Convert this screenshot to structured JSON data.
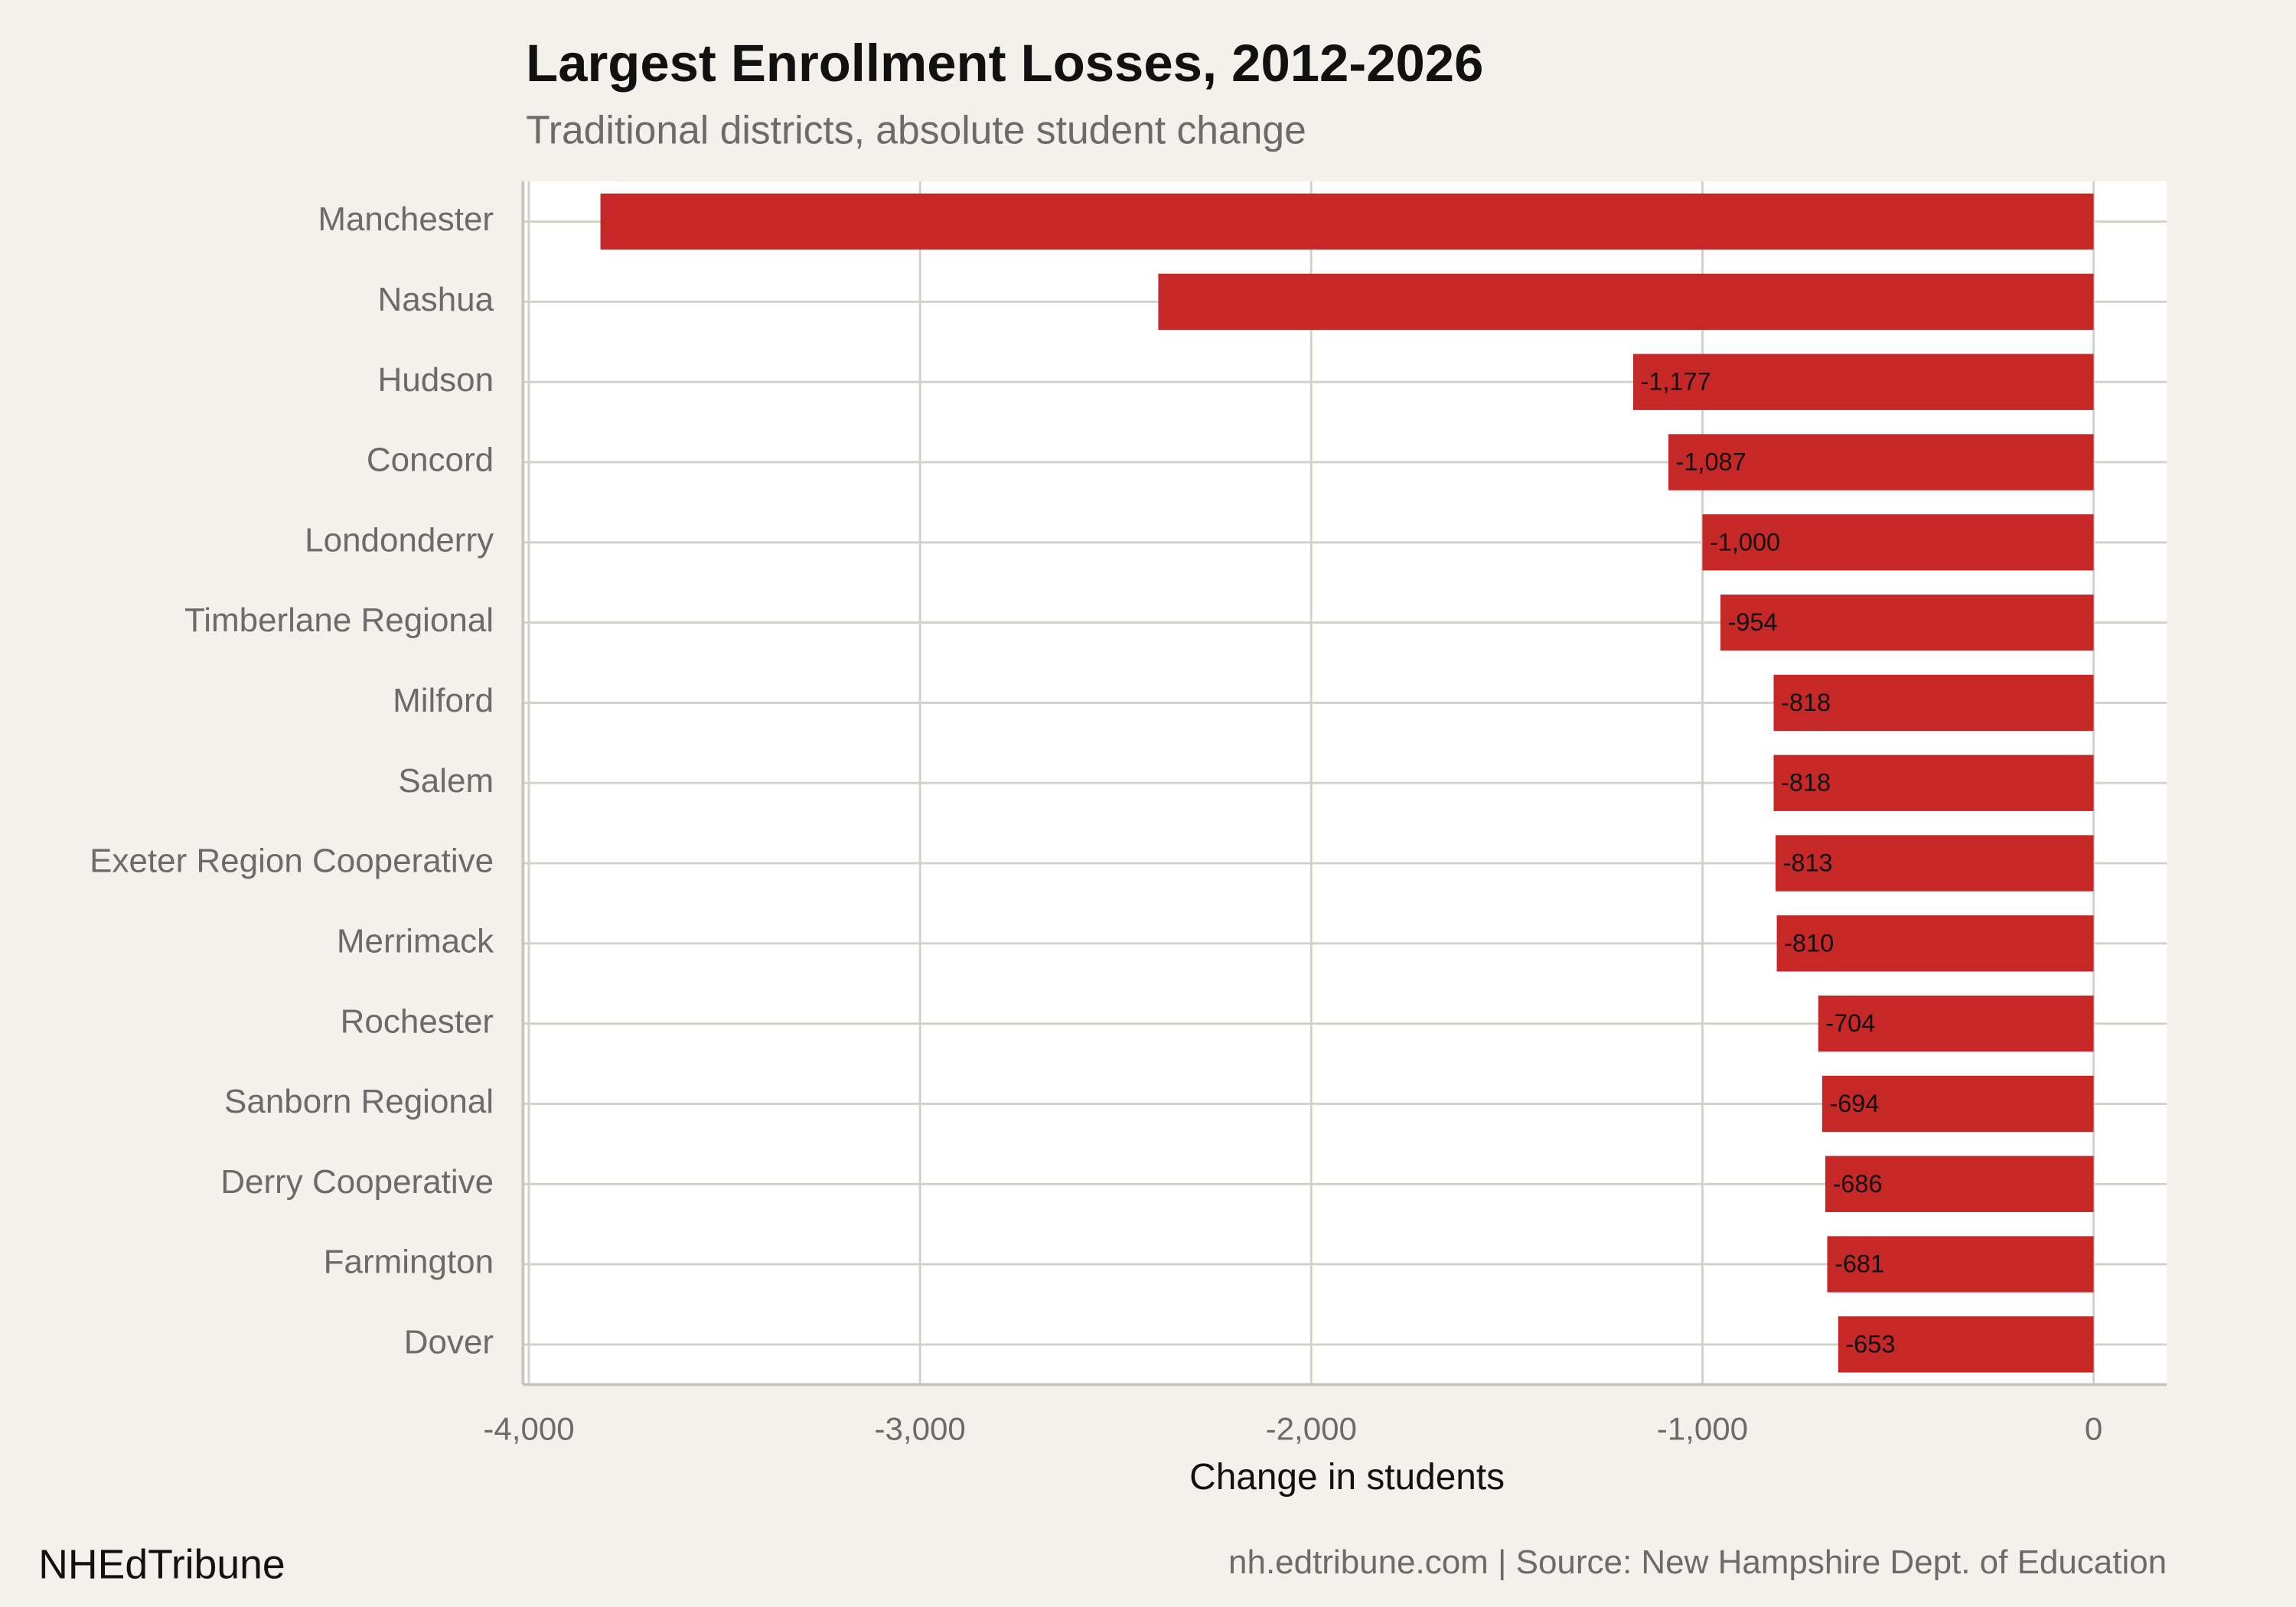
{
  "chart_data": {
    "type": "bar",
    "orientation": "horizontal",
    "title": "Largest Enrollment Losses, 2012-2026",
    "subtitle": "Traditional districts, absolute student change",
    "x_label": "Change in students",
    "brand": "NHEdTribune",
    "source": "nh.edtribune.com | Source: New Hampshire Dept. of Education",
    "categories": [
      "Manchester",
      "Nashua",
      "Hudson",
      "Concord",
      "Londonderry",
      "Timberlane Regional",
      "Milford",
      "Salem",
      "Exeter Region Cooperative",
      "Merrimack",
      "Rochester",
      "Sanborn Regional",
      "Derry Cooperative",
      "Farmington",
      "Dover"
    ],
    "values": [
      -3817,
      -2391,
      -1177,
      -1087,
      -1000,
      -954,
      -818,
      -818,
      -813,
      -810,
      -704,
      -694,
      -686,
      -681,
      -653
    ],
    "value_labels": [
      null,
      null,
      "-1,177",
      "-1,087",
      "-1,000",
      "-954",
      "-818",
      "-818",
      "-813",
      "-810",
      "-704",
      "-694",
      "-686",
      "-681",
      "-653"
    ],
    "color": "#c62828",
    "xlim": [
      -4015,
      187
    ],
    "xticks": [
      {
        "value": -4000,
        "label": "-4,000"
      },
      {
        "value": -3000,
        "label": "-3,000"
      },
      {
        "value": -2000,
        "label": "-2,000"
      },
      {
        "value": -1000,
        "label": "-1,000"
      },
      0
    ],
    "grid": true
  }
}
